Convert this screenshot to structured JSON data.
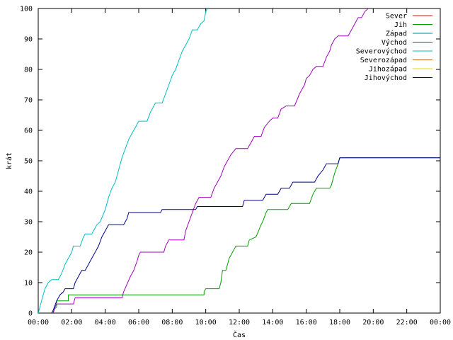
{
  "chart_data": {
    "type": "line",
    "title": "",
    "xlabel": "Čas",
    "ylabel": "krát",
    "xlim": [
      0,
      24
    ],
    "ylim": [
      0,
      100
    ],
    "x_ticks": [
      {
        "value": 0,
        "label": "00:00"
      },
      {
        "value": 2,
        "label": "02:00"
      },
      {
        "value": 4,
        "label": "04:00"
      },
      {
        "value": 6,
        "label": "06:00"
      },
      {
        "value": 8,
        "label": "08:00"
      },
      {
        "value": 10,
        "label": "10:00"
      },
      {
        "value": 12,
        "label": "12:00"
      },
      {
        "value": 14,
        "label": "14:00"
      },
      {
        "value": 16,
        "label": "16:00"
      },
      {
        "value": 18,
        "label": "18:00"
      },
      {
        "value": 20,
        "label": "20:00"
      },
      {
        "value": 22,
        "label": "22:00"
      },
      {
        "value": 24,
        "label": "00:00"
      }
    ],
    "y_ticks": [
      0,
      10,
      20,
      30,
      40,
      50,
      60,
      70,
      80,
      90,
      100
    ],
    "grid": false,
    "legend_position": "top-right",
    "series": [
      {
        "name": "Sever",
        "color": "#ff0000",
        "points": []
      },
      {
        "name": "Jih",
        "color": "#00a000",
        "points": [
          [
            0.9,
            0
          ],
          [
            0.9,
            1
          ],
          [
            1.1,
            2
          ],
          [
            1.1,
            4
          ],
          [
            1.8,
            4
          ],
          [
            1.8,
            6
          ],
          [
            9.9,
            6
          ],
          [
            9.9,
            7
          ],
          [
            10.0,
            8
          ],
          [
            10.8,
            8
          ],
          [
            10.9,
            10
          ],
          [
            11.0,
            14
          ],
          [
            11.2,
            14
          ],
          [
            11.4,
            18
          ],
          [
            11.7,
            21
          ],
          [
            11.8,
            22
          ],
          [
            12.5,
            22
          ],
          [
            12.6,
            24
          ],
          [
            13.0,
            25
          ],
          [
            13.3,
            29
          ],
          [
            13.4,
            30
          ],
          [
            13.6,
            33
          ],
          [
            13.7,
            34
          ],
          [
            14.9,
            34
          ],
          [
            15.0,
            35
          ],
          [
            15.1,
            36
          ],
          [
            16.2,
            36
          ],
          [
            16.4,
            39
          ],
          [
            16.6,
            41
          ],
          [
            17.4,
            41
          ],
          [
            17.5,
            42
          ],
          [
            17.6,
            44
          ],
          [
            17.7,
            46
          ],
          [
            17.9,
            49
          ],
          [
            18.0,
            51
          ],
          [
            24,
            51
          ]
        ]
      },
      {
        "name": "Západ",
        "color": "#0080a0",
        "points": []
      },
      {
        "name": "Východ",
        "color": "#a000c0",
        "points": [
          [
            0.9,
            0
          ],
          [
            1.0,
            2
          ],
          [
            1.1,
            3
          ],
          [
            2.1,
            3
          ],
          [
            2.2,
            5
          ],
          [
            5.0,
            5
          ],
          [
            5.1,
            7
          ],
          [
            5.5,
            12
          ],
          [
            5.7,
            14
          ],
          [
            5.9,
            17
          ],
          [
            6.0,
            19
          ],
          [
            6.1,
            20
          ],
          [
            7.5,
            20
          ],
          [
            7.6,
            22
          ],
          [
            7.8,
            24
          ],
          [
            8.7,
            24
          ],
          [
            8.8,
            27
          ],
          [
            9.0,
            30
          ],
          [
            9.2,
            33
          ],
          [
            9.4,
            36
          ],
          [
            9.6,
            38
          ],
          [
            10.3,
            38
          ],
          [
            10.5,
            41
          ],
          [
            10.9,
            45
          ],
          [
            11.1,
            48
          ],
          [
            11.3,
            50
          ],
          [
            11.5,
            52
          ],
          [
            11.8,
            54
          ],
          [
            12.5,
            54
          ],
          [
            12.7,
            56
          ],
          [
            12.9,
            58
          ],
          [
            13.3,
            58
          ],
          [
            13.5,
            61
          ],
          [
            13.8,
            63
          ],
          [
            14.0,
            64
          ],
          [
            14.3,
            64
          ],
          [
            14.5,
            67
          ],
          [
            14.8,
            68
          ],
          [
            15.3,
            68
          ],
          [
            15.6,
            72
          ],
          [
            15.9,
            75
          ],
          [
            16.0,
            77
          ],
          [
            16.2,
            78
          ],
          [
            16.4,
            80
          ],
          [
            16.6,
            81
          ],
          [
            17.0,
            81
          ],
          [
            17.2,
            84
          ],
          [
            17.4,
            86
          ],
          [
            17.5,
            88
          ],
          [
            17.7,
            90
          ],
          [
            17.9,
            91
          ],
          [
            18.5,
            91
          ],
          [
            18.7,
            93
          ],
          [
            18.9,
            95
          ],
          [
            19.1,
            97
          ],
          [
            19.3,
            97
          ],
          [
            19.5,
            99
          ],
          [
            19.7,
            100
          ]
        ]
      },
      {
        "name": "Severovýchod",
        "color": "#00c0c0",
        "points": [
          [
            0.0,
            0
          ],
          [
            0.2,
            4
          ],
          [
            0.4,
            8
          ],
          [
            0.6,
            10
          ],
          [
            0.8,
            11
          ],
          [
            1.2,
            11
          ],
          [
            1.4,
            13
          ],
          [
            1.6,
            16
          ],
          [
            1.8,
            18
          ],
          [
            2.0,
            20
          ],
          [
            2.1,
            22
          ],
          [
            2.5,
            22
          ],
          [
            2.7,
            25
          ],
          [
            2.8,
            26
          ],
          [
            3.2,
            26
          ],
          [
            3.3,
            27
          ],
          [
            3.5,
            29
          ],
          [
            3.7,
            30
          ],
          [
            4.0,
            34
          ],
          [
            4.2,
            38
          ],
          [
            4.4,
            41
          ],
          [
            4.6,
            43
          ],
          [
            4.8,
            47
          ],
          [
            5.0,
            51
          ],
          [
            5.2,
            54
          ],
          [
            5.4,
            57
          ],
          [
            5.6,
            59
          ],
          [
            5.8,
            61
          ],
          [
            6.0,
            63
          ],
          [
            6.5,
            63
          ],
          [
            6.7,
            66
          ],
          [
            7.0,
            69
          ],
          [
            7.4,
            69
          ],
          [
            7.6,
            72
          ],
          [
            7.8,
            75
          ],
          [
            8.0,
            78
          ],
          [
            8.2,
            80
          ],
          [
            8.4,
            83
          ],
          [
            8.6,
            86
          ],
          [
            8.8,
            88
          ],
          [
            9.0,
            90
          ],
          [
            9.2,
            93
          ],
          [
            9.5,
            93
          ],
          [
            9.7,
            95
          ],
          [
            9.9,
            96
          ],
          [
            10.0,
            99
          ],
          [
            10.1,
            100
          ]
        ]
      },
      {
        "name": "Severozápad",
        "color": "#c06020",
        "points": []
      },
      {
        "name": "Jihozápad",
        "color": "#e0e000",
        "points": []
      },
      {
        "name": "Jihovýchod",
        "color": "#00008b",
        "points": [
          [
            0.8,
            0
          ],
          [
            0.9,
            1
          ],
          [
            1.1,
            4
          ],
          [
            1.3,
            6
          ],
          [
            1.5,
            7
          ],
          [
            1.6,
            8
          ],
          [
            2.1,
            8
          ],
          [
            2.2,
            10
          ],
          [
            2.4,
            12
          ],
          [
            2.6,
            14
          ],
          [
            2.8,
            14
          ],
          [
            3.0,
            16
          ],
          [
            3.2,
            18
          ],
          [
            3.4,
            20
          ],
          [
            3.6,
            22
          ],
          [
            3.8,
            25
          ],
          [
            4.0,
            27
          ],
          [
            4.2,
            29
          ],
          [
            5.1,
            29
          ],
          [
            5.3,
            31
          ],
          [
            5.4,
            33
          ],
          [
            7.3,
            33
          ],
          [
            7.4,
            34
          ],
          [
            9.4,
            34
          ],
          [
            9.5,
            35
          ],
          [
            12.2,
            35
          ],
          [
            12.3,
            37
          ],
          [
            13.4,
            37
          ],
          [
            13.6,
            39
          ],
          [
            14.3,
            39
          ],
          [
            14.5,
            41
          ],
          [
            15.0,
            41
          ],
          [
            15.2,
            43
          ],
          [
            16.5,
            43
          ],
          [
            16.7,
            45
          ],
          [
            17.0,
            47
          ],
          [
            17.2,
            49
          ],
          [
            17.9,
            49
          ],
          [
            18.0,
            51
          ],
          [
            24,
            51
          ]
        ]
      }
    ]
  }
}
